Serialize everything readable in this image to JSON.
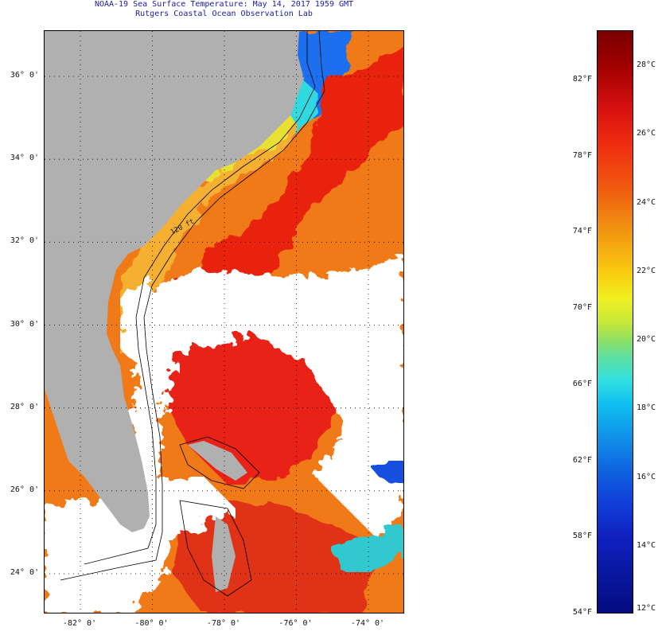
{
  "header": {
    "line1": "NOAA-19 Sea Surface Temperature:  May 14, 2017 1959 GMT",
    "line2": "Rutgers Coastal Ocean Observation Lab"
  },
  "map": {
    "lat_labels": [
      {
        "text": "36° 0'",
        "value": 36
      },
      {
        "text": "34° 0'",
        "value": 34
      },
      {
        "text": "32° 0'",
        "value": 32
      },
      {
        "text": "30° 0'",
        "value": 30
      },
      {
        "text": "28° 0'",
        "value": 28
      },
      {
        "text": "26° 0'",
        "value": 26
      },
      {
        "text": "24° 0'",
        "value": 24
      }
    ],
    "lon_labels": [
      {
        "text": "-82° 0'",
        "value": -82
      },
      {
        "text": "-80° 0'",
        "value": -80
      },
      {
        "text": "-78° 0'",
        "value": -78
      },
      {
        "text": "-76° 0'",
        "value": -76
      },
      {
        "text": "-74° 0'",
        "value": -74
      }
    ],
    "isobath_label": "120 ft",
    "colors": {
      "land": "#b0b0b0",
      "cloud": "#ffffff",
      "gulf_stream": "#e81e10",
      "warm": "#f06a14",
      "shelf": "#f5a623",
      "cold_north": "#1a6ef0"
    }
  },
  "colorbar": {
    "f_labels": [
      {
        "text": "82°F",
        "value": 82
      },
      {
        "text": "78°F",
        "value": 78
      },
      {
        "text": "74°F",
        "value": 74
      },
      {
        "text": "70°F",
        "value": 70
      },
      {
        "text": "66°F",
        "value": 66
      },
      {
        "text": "62°F",
        "value": 62
      },
      {
        "text": "58°F",
        "value": 58
      },
      {
        "text": "54°F",
        "value": 54
      }
    ],
    "c_labels": [
      {
        "text": "28°C",
        "value": 28
      },
      {
        "text": "26°C",
        "value": 26
      },
      {
        "text": "24°C",
        "value": 24
      },
      {
        "text": "22°C",
        "value": 22
      },
      {
        "text": "20°C",
        "value": 20
      },
      {
        "text": "18°C",
        "value": 18
      },
      {
        "text": "16°C",
        "value": 16
      },
      {
        "text": "14°C",
        "value": 14
      },
      {
        "text": "12°C",
        "value": 12
      }
    ]
  }
}
